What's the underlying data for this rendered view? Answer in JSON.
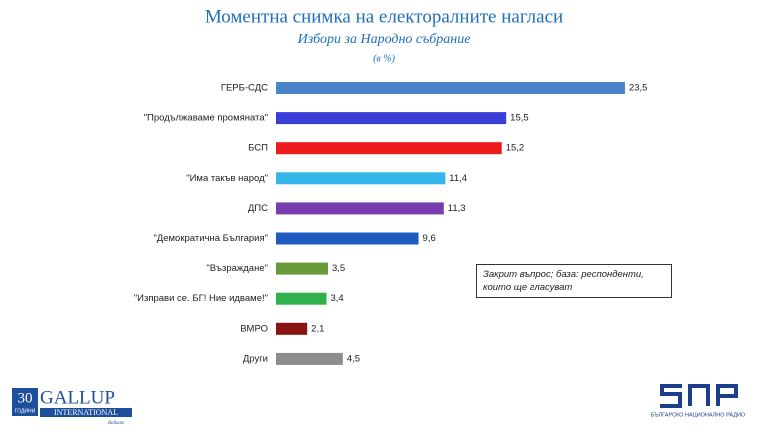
{
  "chart_data": {
    "type": "hbar",
    "title": "Моментна снимка на електоралните нагласи",
    "subtitle": "Избори за Народно събрание",
    "unit_note": "(в %)",
    "annotation": "Закрит въпрос; база: респонденти, които ще гласуват",
    "categories": [
      "ГЕРБ-СДС",
      "\"Продължаваме промяната\"",
      "БСП",
      "\"Има такъв народ\"",
      "ДПС",
      "\"Демократична България\"",
      "\"Възраждане\"",
      "\"Изправи се. БГ! Ние идваме!\"",
      "ВМРО",
      "Други"
    ],
    "values": [
      23.5,
      15.5,
      15.2,
      11.4,
      11.3,
      9.6,
      3.5,
      3.4,
      2.1,
      4.5
    ],
    "value_labels": [
      "23,5",
      "15,5",
      "15,2",
      "11,4",
      "11,3",
      "9,6",
      "3,5",
      "3,4",
      "2,1",
      "4,5"
    ],
    "colors": [
      "#4a84c8",
      "#3a3ed6",
      "#ee1c1c",
      "#35b6ea",
      "#7a3db0",
      "#1f5cc2",
      "#689a3a",
      "#2fb24c",
      "#8a1212",
      "#8c8c8c"
    ]
  },
  "logos": {
    "gallup_years": "30",
    "gallup_years_word": "ГОДИНИ",
    "gallup_name": "GALLUP",
    "gallup_sub": "INTERNATIONAL",
    "gallup_region": "Balkans",
    "bnr_caption": "БЪЛГАРСКО НАЦИОНАЛНО РАДИО"
  }
}
